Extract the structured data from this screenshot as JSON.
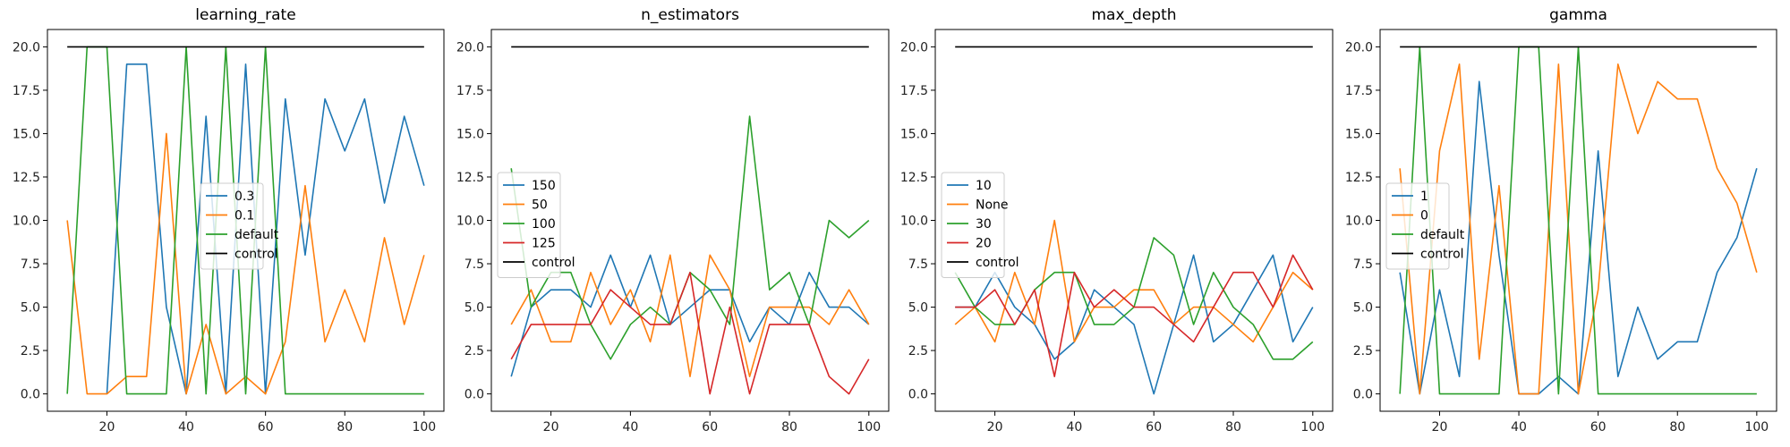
{
  "colors": {
    "blue": "#1f77b4",
    "orange": "#ff7f0e",
    "green": "#2ca02c",
    "red": "#d62728",
    "black": "#000000"
  },
  "chart_data": [
    {
      "type": "line",
      "title": "learning_rate",
      "xlabel": "",
      "ylabel": "",
      "xlim": [
        5,
        105
      ],
      "ylim": [
        -1,
        21
      ],
      "xticks": [
        20,
        40,
        60,
        80,
        100
      ],
      "yticks": [
        0.0,
        2.5,
        5.0,
        7.5,
        10.0,
        12.5,
        15.0,
        17.5,
        20.0
      ],
      "legend_position": "center-right",
      "x": [
        10,
        15,
        20,
        25,
        30,
        35,
        40,
        45,
        50,
        55,
        60,
        65,
        70,
        75,
        80,
        85,
        90,
        95,
        100
      ],
      "series": [
        {
          "name": "0.3",
          "color": "#1f77b4",
          "values": [
            null,
            null,
            0,
            19,
            19,
            5,
            0,
            16,
            0,
            19,
            0,
            17,
            8,
            17,
            14,
            17,
            11,
            16,
            12
          ]
        },
        {
          "name": "0.1",
          "color": "#ff7f0e",
          "values": [
            10,
            0,
            0,
            1,
            1,
            15,
            0,
            4,
            0,
            1,
            0,
            3,
            12,
            3,
            6,
            3,
            9,
            4,
            8
          ]
        },
        {
          "name": "default",
          "color": "#2ca02c",
          "values": [
            0,
            20,
            20,
            0,
            0,
            0,
            20,
            0,
            20,
            0,
            20,
            0,
            0,
            0,
            0,
            0,
            0,
            0,
            0
          ]
        },
        {
          "name": "control",
          "color": "#000000",
          "values": [
            20,
            20,
            20,
            20,
            20,
            20,
            20,
            20,
            20,
            20,
            20,
            20,
            20,
            20,
            20,
            20,
            20,
            20,
            20
          ]
        }
      ]
    },
    {
      "type": "line",
      "title": "n_estimators",
      "xlabel": "",
      "ylabel": "",
      "xlim": [
        5,
        105
      ],
      "ylim": [
        -1,
        21
      ],
      "xticks": [
        20,
        40,
        60,
        80,
        100
      ],
      "yticks": [
        0.0,
        2.5,
        5.0,
        7.5,
        10.0,
        12.5,
        15.0,
        17.5,
        20.0
      ],
      "legend_position": "center-left",
      "x": [
        10,
        15,
        20,
        25,
        30,
        35,
        40,
        45,
        50,
        55,
        60,
        65,
        70,
        75,
        80,
        85,
        90,
        95,
        100
      ],
      "series": [
        {
          "name": "150",
          "color": "#1f77b4",
          "values": [
            1,
            5,
            6,
            6,
            5,
            8,
            5,
            8,
            4,
            5,
            6,
            6,
            3,
            5,
            4,
            7,
            5,
            5,
            4
          ]
        },
        {
          "name": "50",
          "color": "#ff7f0e",
          "values": [
            4,
            6,
            3,
            3,
            7,
            4,
            6,
            3,
            8,
            1,
            8,
            6,
            1,
            5,
            5,
            5,
            4,
            6,
            4
          ]
        },
        {
          "name": "100",
          "color": "#2ca02c",
          "values": [
            13,
            5,
            7,
            7,
            4,
            2,
            4,
            5,
            4,
            7,
            6,
            4,
            16,
            6,
            7,
            4,
            10,
            9,
            10
          ]
        },
        {
          "name": "125",
          "color": "#d62728",
          "values": [
            2,
            4,
            4,
            4,
            4,
            6,
            5,
            4,
            4,
            7,
            0,
            5,
            0,
            4,
            4,
            4,
            1,
            0,
            2
          ]
        },
        {
          "name": "control",
          "color": "#000000",
          "values": [
            20,
            20,
            20,
            20,
            20,
            20,
            20,
            20,
            20,
            20,
            20,
            20,
            20,
            20,
            20,
            20,
            20,
            20,
            20
          ]
        }
      ]
    },
    {
      "type": "line",
      "title": "max_depth",
      "xlabel": "",
      "ylabel": "",
      "xlim": [
        5,
        105
      ],
      "ylim": [
        -1,
        21
      ],
      "xticks": [
        20,
        40,
        60,
        80,
        100
      ],
      "yticks": [
        0.0,
        2.5,
        5.0,
        7.5,
        10.0,
        12.5,
        15.0,
        17.5,
        20.0
      ],
      "legend_position": "center-left",
      "x": [
        10,
        15,
        20,
        25,
        30,
        35,
        40,
        45,
        50,
        55,
        60,
        65,
        70,
        75,
        80,
        85,
        90,
        95,
        100
      ],
      "series": [
        {
          "name": "10",
          "color": "#1f77b4",
          "values": [
            5,
            5,
            7,
            5,
            4,
            2,
            3,
            6,
            5,
            4,
            0,
            4,
            8,
            3,
            4,
            6,
            8,
            3,
            5
          ]
        },
        {
          "name": "None",
          "color": "#ff7f0e",
          "values": [
            4,
            5,
            3,
            7,
            4,
            10,
            3,
            5,
            5,
            6,
            6,
            4,
            5,
            5,
            4,
            3,
            5,
            7,
            6
          ]
        },
        {
          "name": "30",
          "color": "#2ca02c",
          "values": [
            7,
            5,
            4,
            4,
            6,
            7,
            7,
            4,
            4,
            5,
            9,
            8,
            4,
            7,
            5,
            4,
            2,
            2,
            3
          ]
        },
        {
          "name": "20",
          "color": "#d62728",
          "values": [
            5,
            5,
            6,
            4,
            6,
            1,
            7,
            5,
            6,
            5,
            5,
            4,
            3,
            5,
            7,
            7,
            5,
            8,
            6
          ]
        },
        {
          "name": "control",
          "color": "#000000",
          "values": [
            20,
            20,
            20,
            20,
            20,
            20,
            20,
            20,
            20,
            20,
            20,
            20,
            20,
            20,
            20,
            20,
            20,
            20,
            20
          ]
        }
      ]
    },
    {
      "type": "line",
      "title": "gamma",
      "xlabel": "",
      "ylabel": "",
      "xlim": [
        5,
        105
      ],
      "ylim": [
        -1,
        21
      ],
      "xticks": [
        20,
        40,
        60,
        80,
        100
      ],
      "yticks": [
        0.0,
        2.5,
        5.0,
        7.5,
        10.0,
        12.5,
        15.0,
        17.5,
        20.0
      ],
      "legend_position": "center-left",
      "x": [
        10,
        15,
        20,
        25,
        30,
        35,
        40,
        45,
        50,
        55,
        60,
        65,
        70,
        75,
        80,
        85,
        90,
        95,
        100
      ],
      "series": [
        {
          "name": "1",
          "color": "#1f77b4",
          "values": [
            7,
            0,
            6,
            1,
            18,
            8,
            0,
            0,
            1,
            0,
            14,
            1,
            5,
            2,
            3,
            3,
            7,
            9,
            13
          ]
        },
        {
          "name": "0",
          "color": "#ff7f0e",
          "values": [
            13,
            0,
            14,
            19,
            2,
            12,
            0,
            0,
            19,
            0,
            6,
            19,
            15,
            18,
            17,
            17,
            13,
            11,
            7
          ]
        },
        {
          "name": "default",
          "color": "#2ca02c",
          "values": [
            0,
            20,
            0,
            0,
            0,
            0,
            20,
            20,
            0,
            20,
            0,
            0,
            0,
            0,
            0,
            0,
            0,
            0,
            0
          ]
        },
        {
          "name": "control",
          "color": "#000000",
          "values": [
            20,
            20,
            20,
            20,
            20,
            20,
            20,
            20,
            20,
            20,
            20,
            20,
            20,
            20,
            20,
            20,
            20,
            20,
            20
          ]
        }
      ]
    }
  ]
}
